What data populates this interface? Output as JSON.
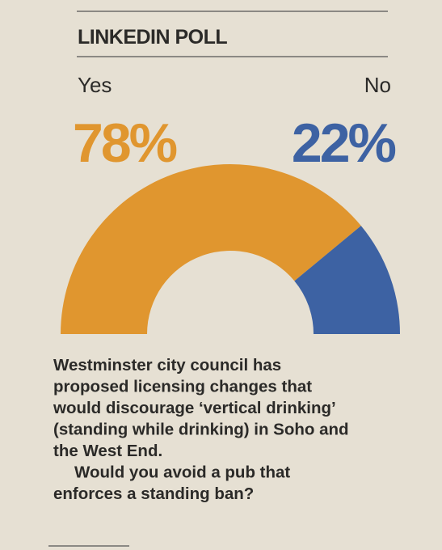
{
  "chart_data": {
    "type": "pie",
    "title": "LINKEDIN POLL",
    "categories": [
      "Yes",
      "No"
    ],
    "values": [
      78,
      22
    ],
    "value_labels": [
      "78%",
      "22%"
    ],
    "colors": [
      "#e0962f",
      "#3d62a3"
    ],
    "description": [
      "Westminster city council has",
      "proposed licensing changes that",
      "would discourage ‘vertical drinking’",
      "(standing while drinking) in Soho and",
      "the West End."
    ],
    "question": [
      "Would you avoid a pub that",
      "enforces a standing ban?"
    ]
  }
}
